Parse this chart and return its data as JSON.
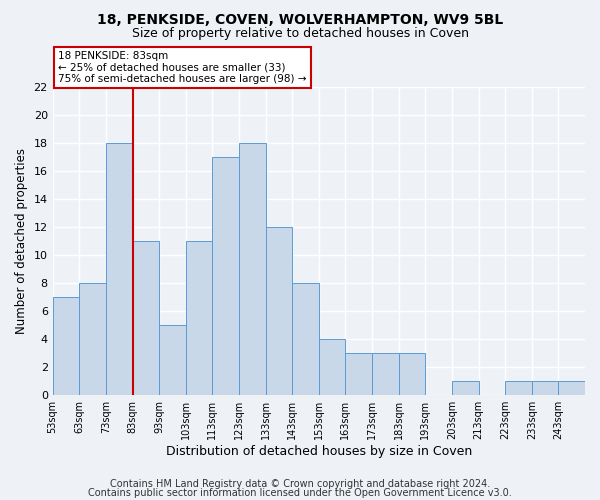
{
  "title1": "18, PENKSIDE, COVEN, WOLVERHAMPTON, WV9 5BL",
  "title2": "Size of property relative to detached houses in Coven",
  "xlabel": "Distribution of detached houses by size in Coven",
  "ylabel": "Number of detached properties",
  "bar_color": "#c8d8e8",
  "bar_edge_color": "#5b9bd5",
  "bins": [
    53,
    63,
    73,
    83,
    93,
    103,
    113,
    123,
    133,
    143,
    153,
    163,
    173,
    183,
    193,
    203,
    213,
    223,
    233,
    243,
    253
  ],
  "values": [
    7,
    8,
    18,
    11,
    5,
    11,
    17,
    18,
    12,
    8,
    4,
    3,
    3,
    3,
    0,
    1,
    0,
    1,
    1,
    1
  ],
  "property_size": 83,
  "vline_color": "#cc0000",
  "annotation_line1": "18 PENKSIDE: 83sqm",
  "annotation_line2": "← 25% of detached houses are smaller (33)",
  "annotation_line3": "75% of semi-detached houses are larger (98) →",
  "annotation_box_color": "#cc0000",
  "ylim": [
    0,
    22
  ],
  "yticks": [
    0,
    2,
    4,
    6,
    8,
    10,
    12,
    14,
    16,
    18,
    20,
    22
  ],
  "footer1": "Contains HM Land Registry data © Crown copyright and database right 2024.",
  "footer2": "Contains public sector information licensed under the Open Government Licence v3.0.",
  "bg_color": "#eef2f7",
  "grid_color": "#ffffff",
  "title1_fontsize": 10,
  "title2_fontsize": 9,
  "xlabel_fontsize": 9,
  "ylabel_fontsize": 8.5,
  "footer_fontsize": 7
}
